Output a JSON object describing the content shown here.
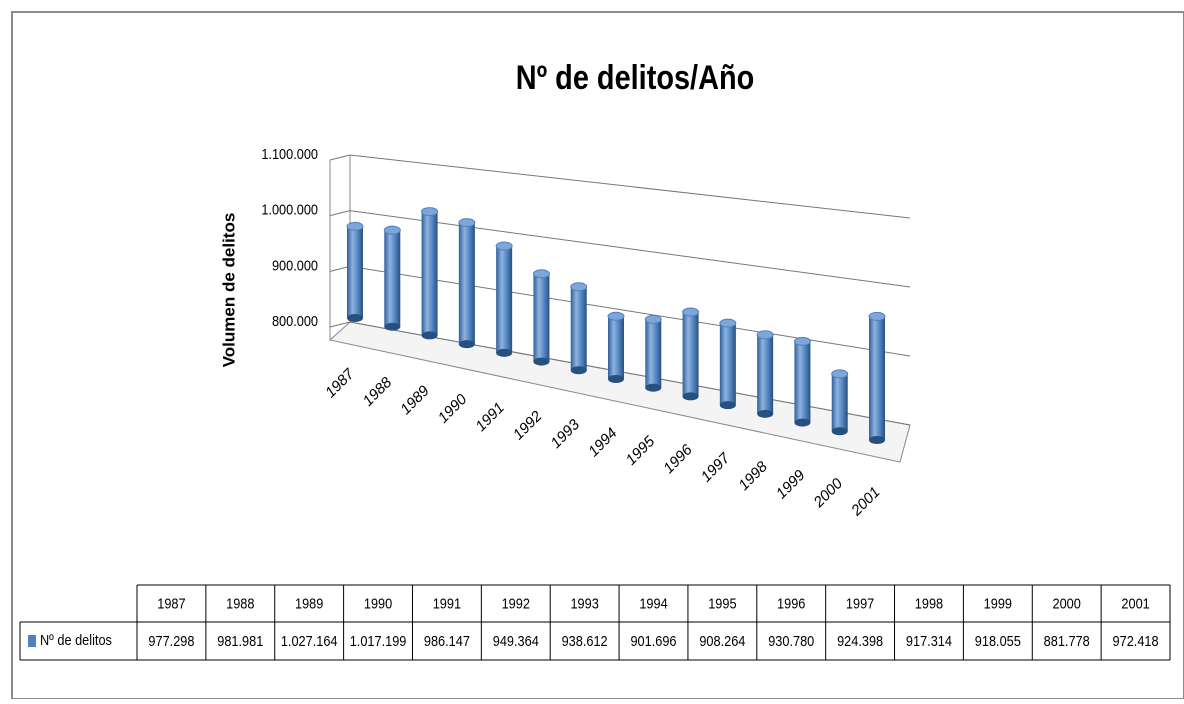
{
  "chart_data": {
    "type": "bar3d",
    "title": "Nº de delitos/Año",
    "y_label": "Volumen de delitos",
    "categories": [
      "1987",
      "1988",
      "1989",
      "1990",
      "1991",
      "1992",
      "1993",
      "1994",
      "1995",
      "1996",
      "1997",
      "1998",
      "1999",
      "2000",
      "2001"
    ],
    "series": [
      {
        "name": "Nº de delitos",
        "color": "#4f81bd",
        "values": [
          977298,
          981981,
          1027164,
          1017199,
          986147,
          949364,
          938612,
          901696,
          908264,
          930780,
          924398,
          917314,
          918055,
          881778,
          972418
        ],
        "value_labels": [
          "977.298",
          "981.981",
          "1.027.164",
          "1.017.199",
          "986.147",
          "949.364",
          "938.612",
          "901.696",
          "908.264",
          "930.780",
          "924.398",
          "917.314",
          "918.055",
          "881.778",
          "972.418"
        ]
      }
    ],
    "ylim": [
      800000,
      1100000
    ],
    "yticks": [
      {
        "value": 800000,
        "label": "800.000"
      },
      {
        "value": 900000,
        "label": "900.000"
      },
      {
        "value": 1000000,
        "label": "1.000.000"
      },
      {
        "value": 1100000,
        "label": "1.100.000"
      }
    ],
    "grid": true
  }
}
